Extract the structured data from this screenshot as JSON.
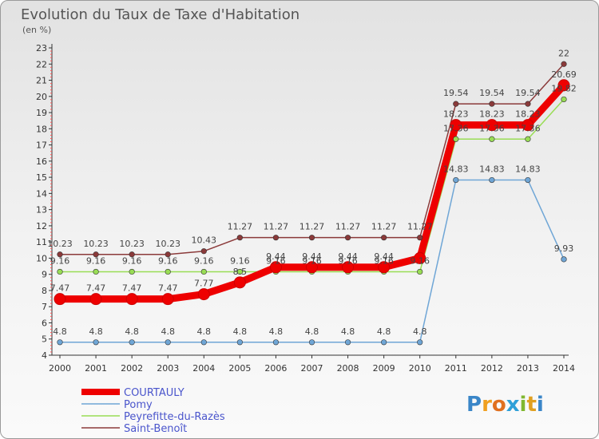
{
  "title": "Evolution du Taux de Taxe d'Habitation",
  "unit_label": "(en %)",
  "brand": {
    "letters": [
      "P",
      "r",
      "o",
      "x",
      "i",
      "t",
      "i"
    ],
    "colors": [
      "#3a86c8",
      "#f0a020",
      "#e07020",
      "#2fa0d8",
      "#80b830",
      "#e0a020",
      "#3a86c8"
    ]
  },
  "chart_data": {
    "type": "line",
    "x": [
      "2000",
      "2001",
      "2002",
      "2003",
      "2004",
      "2005",
      "2006",
      "2007",
      "2008",
      "2009",
      "2010",
      "2011",
      "2012",
      "2013",
      "2014"
    ],
    "ylim": [
      4,
      23
    ],
    "yticks": [
      "4",
      "5",
      "6",
      "7",
      "8",
      "9",
      "10",
      "11",
      "12",
      "13",
      "14",
      "15",
      "16",
      "17",
      "18",
      "19",
      "20",
      "21",
      "22",
      "23"
    ],
    "grid": false,
    "legend_position": "bottom-left",
    "series": [
      {
        "name": "COURTAULY",
        "color": "#ee0000",
        "values": [
          7.47,
          7.47,
          7.47,
          7.47,
          7.77,
          8.5,
          9.44,
          9.44,
          9.44,
          9.44,
          10.0,
          18.23,
          18.23,
          18.23,
          20.69
        ],
        "labels": [
          "7.47",
          "7.47",
          "7.47",
          "7.47",
          "7.77",
          "8.5",
          "9.44",
          "9.44",
          "9.44",
          "9.44",
          "",
          "18.23",
          "18.23",
          "18.23",
          "20.69"
        ]
      },
      {
        "name": "Pomy",
        "color": "#6fa6d6",
        "values": [
          4.8,
          4.8,
          4.8,
          4.8,
          4.8,
          4.8,
          4.8,
          4.8,
          4.8,
          4.8,
          4.8,
          14.83,
          14.83,
          14.83,
          9.93
        ],
        "labels": [
          "4.8",
          "4.8",
          "4.8",
          "4.8",
          "4.8",
          "4.8",
          "4.8",
          "4.8",
          "4.8",
          "4.8",
          "4.8",
          "14.83",
          "14.83",
          "14.83",
          "9.93"
        ]
      },
      {
        "name": "Peyrefitte-du-Razès",
        "color": "#99dd55",
        "values": [
          9.16,
          9.16,
          9.16,
          9.16,
          9.16,
          9.16,
          9.16,
          9.16,
          9.16,
          9.16,
          9.16,
          17.36,
          17.36,
          17.36,
          19.82
        ],
        "labels": [
          "9.16",
          "9.16",
          "9.16",
          "9.16",
          "9.16",
          "9.16",
          "9.16",
          "9.16",
          "9.16",
          "9.16",
          "9.16",
          "17.36",
          "17.36",
          "17.36",
          "19.82"
        ]
      },
      {
        "name": "Saint-Benoît",
        "color": "#8b3a3a",
        "values": [
          10.23,
          10.23,
          10.23,
          10.23,
          10.43,
          11.27,
          11.27,
          11.27,
          11.27,
          11.27,
          11.27,
          19.54,
          19.54,
          19.54,
          22
        ],
        "labels": [
          "10.23",
          "10.23",
          "10.23",
          "10.23",
          "10.43",
          "11.27",
          "11.27",
          "11.27",
          "11.27",
          "11.27",
          "11.27",
          "19.54",
          "19.54",
          "19.54",
          "22"
        ]
      }
    ]
  }
}
